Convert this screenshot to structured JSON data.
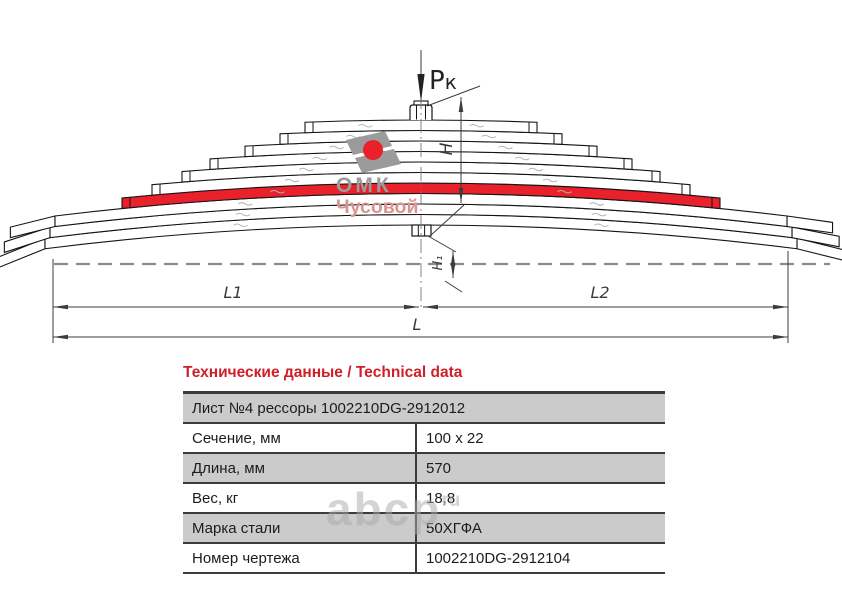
{
  "drawing": {
    "force_label_main": "Р",
    "force_label_sub": "к",
    "dim_h": "H",
    "dim_h1": "H₁",
    "dim_l1": "L1",
    "dim_l2": "L2",
    "dim_l": "L",
    "logo": {
      "line1": "ОМК",
      "line2": "Чусовой"
    },
    "colors": {
      "leaf_red": "#e8212a",
      "logo_gray": "#9b9b9b",
      "logo_text_red": "#da938e",
      "drawing_line": "#141414",
      "dimension_line": "#3c3c3c"
    }
  },
  "watermark": {
    "main": "abcp",
    "suffix": "ru"
  },
  "table": {
    "title": "Технические данные / Technical data",
    "title_color": "#d01f28",
    "header": "Лист №4 рессоры 1002210DG-2912012",
    "rows": [
      {
        "label": "Сечение, мм",
        "value": "100 x 22"
      },
      {
        "label": "Длина, мм",
        "value": "570"
      },
      {
        "label": "Вес, кг",
        "value": "18,8"
      },
      {
        "label": "Марка стали",
        "value": "50ХГФА"
      },
      {
        "label": "Номер чертежа",
        "value": "1002210DG-2912104"
      }
    ]
  }
}
